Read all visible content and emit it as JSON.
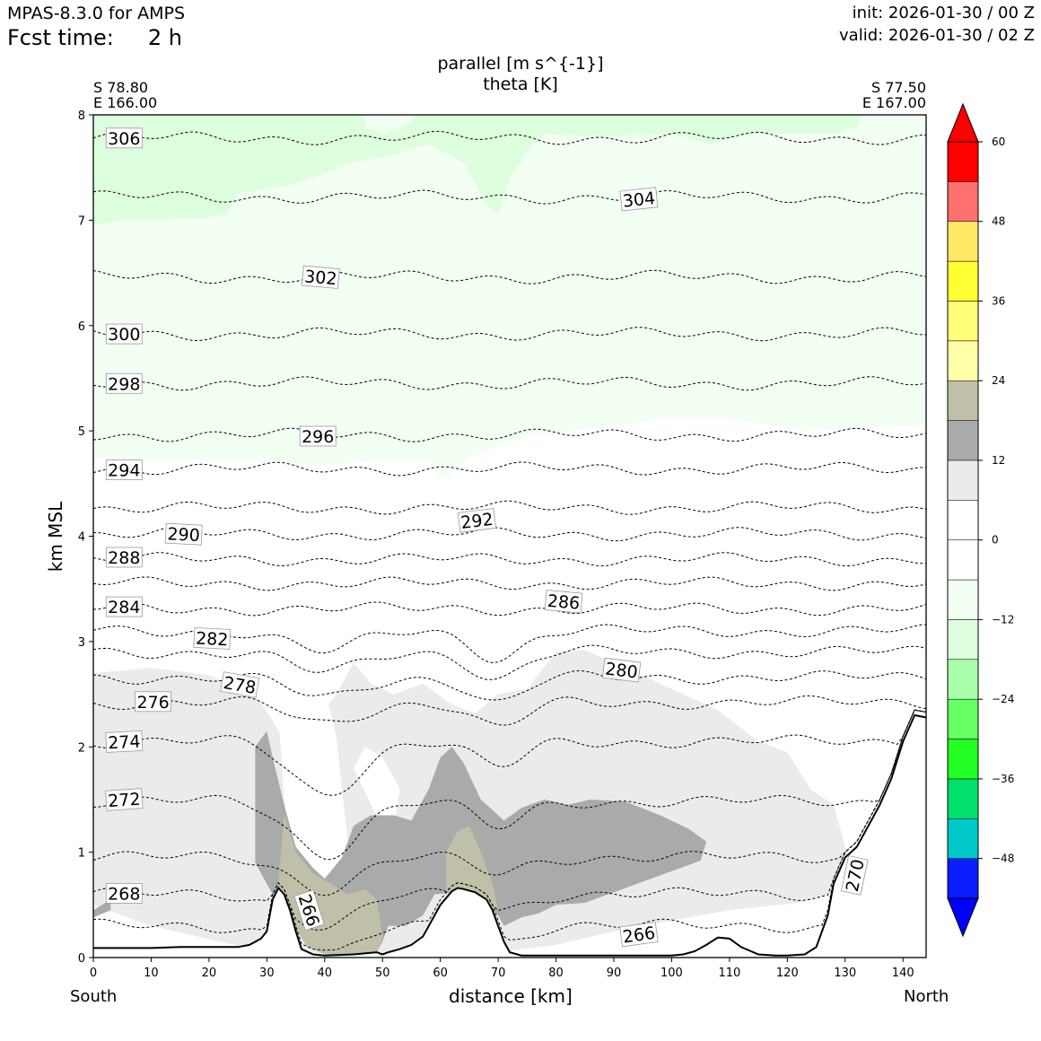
{
  "header": {
    "model": "MPAS-8.3.0 for AMPS",
    "fcst_label": "Fcst time:",
    "fcst_value": "2 h",
    "init": "init: 2026-01-30 / 00 Z",
    "valid": "valid: 2026-01-30 / 02 Z"
  },
  "plot": {
    "title_line1": "parallel [m s^{-1}]",
    "title_line2": "theta [K]",
    "left_lat": "S 78.80",
    "left_lon": "E 166.00",
    "right_lat": "S 77.50",
    "right_lon": "E 167.00",
    "south": "South",
    "north": "North"
  },
  "chart_data": {
    "type": "cross-section contour",
    "xlabel": "distance [km]",
    "ylabel": "km MSL",
    "xlim": [
      0,
      144
    ],
    "ylim": [
      0,
      8
    ],
    "xticks": [
      "0",
      "10",
      "20",
      "30",
      "40",
      "50",
      "60",
      "70",
      "80",
      "90",
      "100",
      "110",
      "120",
      "130",
      "140"
    ],
    "yticks": [
      "0",
      "1",
      "2",
      "3",
      "4",
      "5",
      "6",
      "7",
      "8"
    ],
    "colorbar": {
      "levels": [
        -54,
        -48,
        -42,
        -36,
        -30,
        -24,
        -18,
        -12,
        -6,
        0,
        6,
        12,
        18,
        24,
        30,
        36,
        42,
        48,
        54,
        60
      ],
      "colors": [
        "#0a1eff",
        "#00c8c8",
        "#00e06a",
        "#22ff22",
        "#66ff66",
        "#aaffaa",
        "#ddffdd",
        "#f2fff2",
        "#ffffff",
        "#ffffff",
        "#ebebeb",
        "#aaaaaa",
        "#c0c0a8",
        "#ffffaa",
        "#ffff77",
        "#ffff33",
        "#ffe866",
        "#ff7070",
        "#ff0000"
      ],
      "under_color": "#0000ff",
      "over_color": "#ff0000",
      "tick_labels": [
        "60",
        "48",
        "36",
        "24",
        "12",
        "0",
        "−12",
        "−24",
        "−36",
        "−48"
      ],
      "tick_values": [
        60,
        48,
        36,
        24,
        12,
        0,
        -12,
        -24,
        -36,
        -48
      ]
    },
    "terrain": {
      "x": [
        0,
        10,
        15,
        25,
        27,
        29,
        30,
        31,
        32,
        33,
        34,
        35,
        36,
        38,
        40,
        45,
        49,
        50,
        51,
        53,
        55,
        57,
        58,
        60,
        62,
        63,
        64,
        66,
        68,
        69,
        70,
        71,
        72,
        74,
        78,
        85,
        90,
        95,
        100,
        102,
        104,
        106,
        108,
        110,
        112,
        115,
        118,
        120,
        123,
        125,
        127,
        128,
        130,
        132,
        134,
        136,
        138,
        140,
        142,
        144
      ],
      "y": [
        0.09,
        0.09,
        0.1,
        0.1,
        0.12,
        0.18,
        0.25,
        0.55,
        0.66,
        0.6,
        0.45,
        0.25,
        0.08,
        0.03,
        0.02,
        0.03,
        0.05,
        0.03,
        0.05,
        0.08,
        0.12,
        0.2,
        0.3,
        0.5,
        0.63,
        0.66,
        0.65,
        0.62,
        0.55,
        0.45,
        0.3,
        0.15,
        0.05,
        0.02,
        0.02,
        0.02,
        0.02,
        0.02,
        0.02,
        0.03,
        0.06,
        0.12,
        0.19,
        0.18,
        0.1,
        0.03,
        0.02,
        0.02,
        0.03,
        0.1,
        0.4,
        0.7,
        0.95,
        1.05,
        1.25,
        1.45,
        1.7,
        2.05,
        2.3,
        2.28
      ]
    },
    "theta_contours": [
      {
        "value": 306,
        "y": 7.78
      },
      {
        "value": 304,
        "y": 7.22
      },
      {
        "value": 302,
        "y": 6.46
      },
      {
        "value": 300,
        "y": 5.92
      },
      {
        "value": 298,
        "y": 5.45
      },
      {
        "value": 296,
        "y": 4.96
      },
      {
        "value": 294,
        "y": 4.64
      },
      {
        "value": 292,
        "y": 4.27
      },
      {
        "value": 290,
        "y": 4.02
      },
      {
        "value": 288,
        "y": 3.78
      },
      {
        "value": 286,
        "y": 3.55
      },
      {
        "value": 284,
        "y": 3.31
      },
      {
        "value": 282,
        "y": 3.1
      },
      {
        "value": 280,
        "y": 2.9
      },
      {
        "value": 278,
        "y": 2.66
      },
      {
        "value": 276,
        "y": 2.42
      },
      {
        "value": 274,
        "y": 2.05
      },
      {
        "value": 272,
        "y": 1.48
      },
      {
        "value": 270,
        "y": 0.95
      },
      {
        "value": 268,
        "y": 0.6
      },
      {
        "value": 266,
        "y": 0.3
      }
    ],
    "contour_labels": [
      {
        "text": "306",
        "x": 3,
        "y": 7.78,
        "rot": 0
      },
      {
        "text": "304",
        "x": 92,
        "y": 7.2,
        "rot": -6
      },
      {
        "text": "302",
        "x": 37,
        "y": 6.46,
        "rot": 5
      },
      {
        "text": "300",
        "x": 3,
        "y": 5.92,
        "rot": 0
      },
      {
        "text": "298",
        "x": 3,
        "y": 5.45,
        "rot": 0
      },
      {
        "text": "296",
        "x": 36.5,
        "y": 4.95,
        "rot": 0
      },
      {
        "text": "294",
        "x": 3,
        "y": 4.63,
        "rot": 0
      },
      {
        "text": "292",
        "x": 64,
        "y": 4.15,
        "rot": -7
      },
      {
        "text": "290",
        "x": 13.3,
        "y": 4.02,
        "rot": 3
      },
      {
        "text": "288",
        "x": 3,
        "y": 3.8,
        "rot": 0
      },
      {
        "text": "286",
        "x": 79,
        "y": 3.38,
        "rot": 5
      },
      {
        "text": "284",
        "x": 3,
        "y": 3.33,
        "rot": 0
      },
      {
        "text": "282",
        "x": 18.2,
        "y": 3.03,
        "rot": 3
      },
      {
        "text": "280",
        "x": 89,
        "y": 2.73,
        "rot": 7
      },
      {
        "text": "278",
        "x": 23,
        "y": 2.59,
        "rot": 10
      },
      {
        "text": "276",
        "x": 8,
        "y": 2.43,
        "rot": 0
      },
      {
        "text": "274",
        "x": 3,
        "y": 2.05,
        "rot": -3
      },
      {
        "text": "272",
        "x": 3,
        "y": 1.5,
        "rot": -4
      },
      {
        "text": "268",
        "x": 3,
        "y": 0.61,
        "rot": 0
      },
      {
        "text": "266",
        "x": 35,
        "y": 0.45,
        "rot": 72
      },
      {
        "text": "266",
        "x": 92,
        "y": 0.22,
        "rot": -8
      },
      {
        "text": "270",
        "x": 129.3,
        "y": 0.78,
        "rot": -78
      }
    ]
  }
}
